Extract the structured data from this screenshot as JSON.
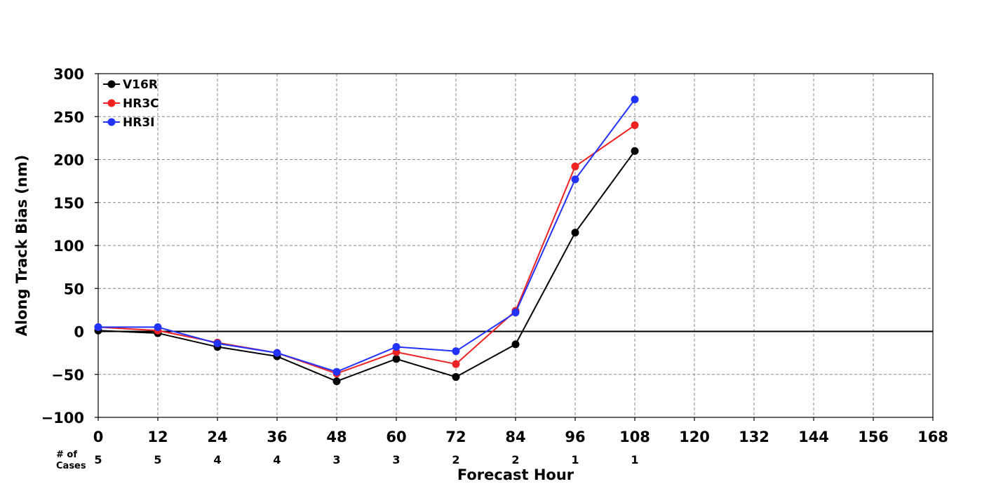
{
  "chart_data": {
    "type": "line",
    "xlabel": "Forecast Hour",
    "ylabel": "Along Track Bias (nm)",
    "xlim": [
      0,
      168
    ],
    "ylim": [
      -100,
      300
    ],
    "x_ticks": [
      "0",
      "12",
      "24",
      "36",
      "48",
      "60",
      "72",
      "84",
      "96",
      "108",
      "120",
      "132",
      "144",
      "156",
      "168"
    ],
    "y_ticks": [
      "−100",
      "−50",
      "0",
      "50",
      "100",
      "150",
      "200",
      "250",
      "300"
    ],
    "x_tick_values": [
      0,
      12,
      24,
      36,
      48,
      60,
      72,
      84,
      96,
      108,
      120,
      132,
      144,
      156,
      168
    ],
    "y_tick_values": [
      -100,
      -50,
      0,
      50,
      100,
      150,
      200,
      250,
      300
    ],
    "grid": true,
    "legend_position": "top-left",
    "x": [
      0,
      12,
      24,
      36,
      48,
      60,
      72,
      84,
      96,
      108
    ],
    "series": [
      {
        "name": "V16R",
        "color": "#000000",
        "values": [
          1,
          -2,
          -18,
          -29,
          -58,
          -32,
          -53,
          -15,
          115,
          210
        ]
      },
      {
        "name": "HR3C",
        "color": "#ee2222",
        "values": [
          5,
          1,
          -13,
          -25,
          -49,
          -24,
          -38,
          24,
          192,
          240
        ]
      },
      {
        "name": "HR3I",
        "color": "#2233ff",
        "values": [
          5,
          5,
          -14,
          -25,
          -47,
          -18,
          -23,
          22,
          177,
          270
        ]
      }
    ],
    "cases": {
      "title_line1": "# of",
      "title_line2": "Cases",
      "values": [
        "5",
        "5",
        "4",
        "4",
        "3",
        "3",
        "2",
        "2",
        "1",
        "1"
      ]
    }
  }
}
